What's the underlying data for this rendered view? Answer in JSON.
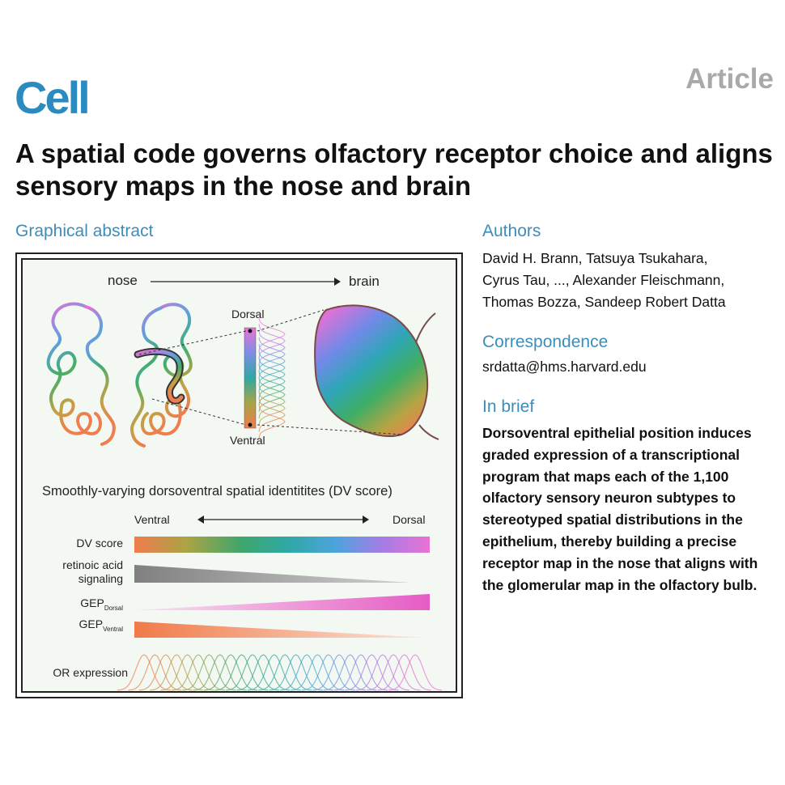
{
  "header": {
    "journal": "Cell",
    "article_type": "Article",
    "title": "A spatial code governs olfactory receptor choice and aligns sensory maps in the nose and brain"
  },
  "graphical_abstract": {
    "heading": "Graphical abstract",
    "top_labels": {
      "nose": "nose",
      "brain": "brain",
      "dorsal": "Dorsal",
      "ventral": "Ventral"
    },
    "subtitle": "Smoothly-varying dorsoventral spatial identitites (DV score)",
    "axis": {
      "left": "Ventral",
      "right": "Dorsal"
    },
    "rows": {
      "dv_score": "DV score",
      "retinoic_line1": "retinoic acid",
      "retinoic_line2": "signaling",
      "gep_main": "GEP",
      "gep_dorsal_sub": "Dorsal",
      "gep_ventral_sub": "Ventral",
      "or_expression": "OR expression"
    },
    "colors": {
      "dv_gradient": [
        "#f07d4e",
        "#a9a446",
        "#3fa66b",
        "#2fa8a4",
        "#4ca4dc",
        "#a67ce6",
        "#e973d4"
      ],
      "retinoic": "#888888",
      "gep_dorsal": "#e460c4",
      "gep_ventral": "#f08050"
    }
  },
  "sidebar": {
    "authors_heading": "Authors",
    "authors_lines": [
      "David H. Brann, Tatsuya Tsukahara,",
      "Cyrus Tau, ..., Alexander Fleischmann,",
      "Thomas Bozza, Sandeep Robert Datta"
    ],
    "correspondence_heading": "Correspondence",
    "email": "srdatta@hms.harvard.edu",
    "brief_heading": "In brief",
    "brief_lines": [
      "Dorsoventral epithelial position induces",
      "graded expression of a transcriptional",
      "program that maps each of the 1,100",
      "olfactory sensory neuron subtypes to",
      "stereotyped spatial distributions in the",
      "epithelium, thereby building a precise",
      "receptor map in the nose that aligns with",
      "the glomerular map in the olfactory bulb."
    ]
  }
}
